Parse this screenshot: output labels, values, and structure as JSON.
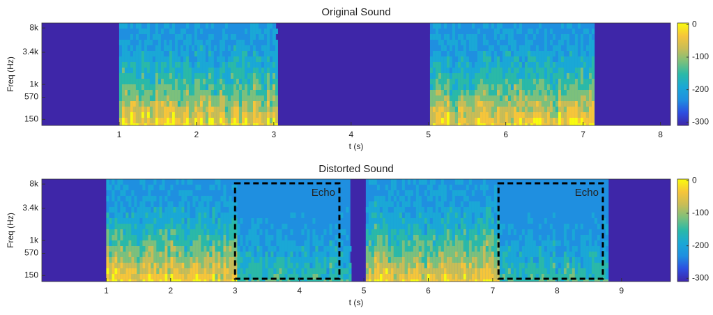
{
  "chart_data": [
    {
      "type": "spectrogram",
      "title": "Original Sound",
      "x_label": "t (s)",
      "y_label": "Freq (Hz)",
      "xlim": [
        0,
        8.13
      ],
      "xticks": [
        1,
        2,
        3,
        4,
        5,
        6,
        7,
        8
      ],
      "ylim": [
        80,
        9500
      ],
      "yscale": "erb",
      "yticks": [
        150,
        570,
        {
          "value": 1000,
          "label": "1k"
        },
        {
          "value": 3400,
          "label": "3.4k"
        },
        {
          "value": 8000,
          "label": "8k"
        }
      ],
      "segments": [
        {
          "start": 1.0,
          "end": 3.03
        },
        {
          "start": 5.02,
          "end": 7.15
        }
      ],
      "clim": [
        -310,
        5
      ],
      "cticks": [
        0,
        -100,
        -200,
        -300
      ],
      "colormap": [
        "#3e26a8",
        "#2d4ee0",
        "#1f8fe0",
        "#1aa8d6",
        "#2ab9a8",
        "#7cc07c",
        "#c8bd56",
        "#f6c53a",
        "#f9fb0e"
      ]
    },
    {
      "type": "spectrogram",
      "title": "Distorted Sound",
      "x_label": "t (s)",
      "y_label": "Freq (Hz)",
      "xlim": [
        0,
        9.76
      ],
      "xticks": [
        1,
        2,
        3,
        4,
        5,
        6,
        7,
        8,
        9
      ],
      "ylim": [
        80,
        9500
      ],
      "yscale": "erb",
      "yticks": [
        150,
        570,
        {
          "value": 1000,
          "label": "1k"
        },
        {
          "value": 3400,
          "label": "3.4k"
        },
        {
          "value": 8000,
          "label": "8k"
        }
      ],
      "segments": [
        {
          "start": 1.0,
          "end": 4.79
        },
        {
          "start": 5.03,
          "end": 8.8
        }
      ],
      "annotations": [
        {
          "text": "Echo",
          "start": 3.0,
          "end": 4.62
        },
        {
          "text": "Echo",
          "start": 7.09,
          "end": 8.71
        }
      ],
      "clim": [
        -310,
        5
      ],
      "cticks": [
        0,
        -100,
        -200,
        -300
      ],
      "colormap": [
        "#3e26a8",
        "#2d4ee0",
        "#1f8fe0",
        "#1aa8d6",
        "#2ab9a8",
        "#7cc07c",
        "#c8bd56",
        "#f6c53a",
        "#f9fb0e"
      ]
    }
  ]
}
